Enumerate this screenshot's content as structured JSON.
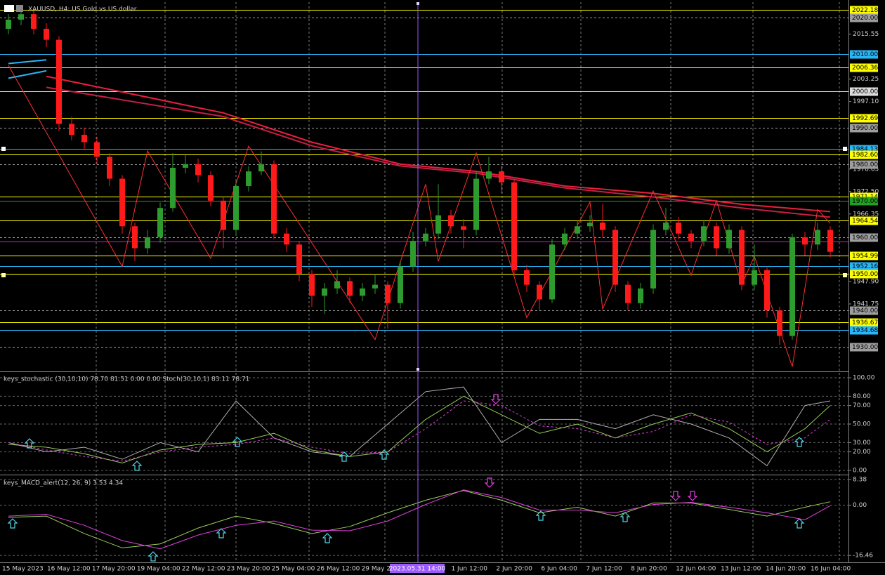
{
  "chart_data": [
    {
      "type": "candlestick",
      "title": "XAUUSD, H4: US Gold vs US dollar",
      "ylim": [
        1923.5,
        2024.3
      ],
      "yticks": [
        {
          "value": 2015.55,
          "label": "2015.55"
        },
        {
          "value": 2003.25,
          "label": "2003.25"
        },
        {
          "value": 1997.1,
          "label": "1997.10"
        },
        {
          "value": 1978.65,
          "label": "1978.65"
        },
        {
          "value": 1972.5,
          "label": "1972.50"
        },
        {
          "value": 1966.35,
          "label": "1966.35"
        },
        {
          "value": 1947.9,
          "label": "1947.90"
        },
        {
          "value": 1941.75,
          "label": "1941.75"
        }
      ],
      "up_color": "#2e9b2e",
      "down_color": "#ff1a1a",
      "open": [
        2017.0,
        2019.5,
        2021.0,
        2017.0,
        2014.0,
        1991.0,
        1988.0,
        1986.0,
        1982.0,
        1976.0,
        1963.0,
        1957.0,
        1960.0,
        1968.0,
        1979.0,
        1980.0,
        1977.0,
        1970.0,
        1962.0,
        1974.0,
        1978.0,
        1980.0,
        1961.0,
        1958.0,
        1950.0,
        1944.0,
        1946.0,
        1948.0,
        1944.0,
        1946.0,
        1947.0,
        1942.0,
        1952.0,
        1959.0,
        1961.0,
        1966.0,
        1963.0,
        1962.0,
        1976.0,
        1978.0,
        1975.0,
        1951.0,
        1947.0,
        1943.0,
        1958.0,
        1961.0,
        1963.0,
        1964.0,
        1962.0,
        1947.0,
        1942.0,
        1946.0,
        1962.0,
        1964.0,
        1961.0,
        1959.0,
        1963.0,
        1957.0,
        1962.0,
        1947.0,
        1951.0,
        1940.0,
        1933.0,
        1960.0,
        1958.0,
        1962.0
      ],
      "high": [
        2021.0,
        2022.2,
        2022.0,
        2018.5,
        2015.0,
        1993.0,
        1990.0,
        1987.5,
        1983.0,
        1977.0,
        1964.0,
        1962.0,
        1969.5,
        1983.0,
        1982.5,
        1981.5,
        1978.0,
        1971.0,
        1975.5,
        1979.5,
        1983.5,
        1981.0,
        1962.5,
        1959.0,
        1951.0,
        1947.5,
        1951.0,
        1949.0,
        1947.5,
        1950.0,
        1948.0,
        1953.5,
        1961.5,
        1962.5,
        1974.5,
        1967.5,
        1965.0,
        1978.0,
        1982.0,
        1979.5,
        1976.0,
        1952.5,
        1948.0,
        1959.5,
        1962.5,
        1964.5,
        1966.0,
        1969.0,
        1963.0,
        1948.0,
        1947.5,
        1963.5,
        1968.0,
        1965.5,
        1962.0,
        1964.5,
        1964.0,
        1963.5,
        1963.0,
        1958.0,
        1952.0,
        1941.0,
        1961.0,
        1961.5,
        1964.0,
        1963.0
      ],
      "low": [
        2015.5,
        2018.0,
        2015.5,
        2012.0,
        1989.0,
        1986.5,
        1984.0,
        1980.0,
        1974.0,
        1961.0,
        1953.5,
        1955.5,
        1958.5,
        1967.0,
        1977.5,
        1975.0,
        1968.5,
        1957.0,
        1960.5,
        1972.5,
        1977.0,
        1959.5,
        1956.0,
        1948.0,
        1941.0,
        1939.0,
        1944.5,
        1942.0,
        1942.5,
        1944.5,
        1935.0,
        1940.5,
        1950.5,
        1957.5,
        1959.5,
        1961.0,
        1957.0,
        1960.5,
        1974.5,
        1972.0,
        1949.5,
        1945.0,
        1940.0,
        1942.0,
        1956.5,
        1959.5,
        1961.5,
        1960.0,
        1945.0,
        1940.0,
        1940.5,
        1944.5,
        1960.5,
        1959.5,
        1957.0,
        1957.5,
        1955.0,
        1955.5,
        1945.5,
        1945.5,
        1938.0,
        1930.5,
        1932.0,
        1955.0,
        1956.5,
        1954.5
      ],
      "close": [
        2019.5,
        2021.0,
        2017.0,
        2014.0,
        1991.0,
        1988.0,
        1986.0,
        1982.0,
        1976.0,
        1963.0,
        1957.0,
        1960.0,
        1968.0,
        1979.0,
        1980.0,
        1977.0,
        1970.0,
        1962.0,
        1974.0,
        1978.0,
        1980.0,
        1961.0,
        1958.0,
        1950.0,
        1944.0,
        1946.0,
        1948.0,
        1944.0,
        1946.0,
        1947.0,
        1942.0,
        1952.0,
        1959.0,
        1961.0,
        1966.0,
        1963.0,
        1962.0,
        1976.0,
        1978.0,
        1975.0,
        1951.0,
        1947.0,
        1943.0,
        1958.0,
        1961.0,
        1963.0,
        1964.0,
        1962.0,
        1947.0,
        1942.0,
        1946.0,
        1962.0,
        1964.0,
        1961.0,
        1959.0,
        1963.0,
        1957.0,
        1962.0,
        1947.0,
        1951.0,
        1940.0,
        1933.0,
        1960.0,
        1958.0,
        1962.0,
        1956.0
      ],
      "overlays": [
        {
          "color": "#e8203c",
          "x": [
            3,
            10,
            17,
            24,
            31,
            37,
            44,
            51,
            58,
            65
          ],
          "values": [
            2004,
            1999,
            1994,
            1986,
            1980,
            1978,
            1974,
            1972,
            1969,
            1967
          ]
        },
        {
          "color": "#c81e46",
          "x": [
            3,
            10,
            17,
            24,
            31,
            37,
            44,
            51,
            58,
            65
          ],
          "values": [
            2001,
            1997,
            1993,
            1985,
            1979.5,
            1977.5,
            1973.5,
            1971,
            1968,
            1965.5
          ]
        },
        {
          "color": "#29b6f6",
          "x": [
            0,
            3
          ],
          "values": [
            2007.5,
            2008.5
          ]
        },
        {
          "color": "#29b6f6",
          "x": [
            0,
            3
          ],
          "values": [
            2003.5,
            2005.5
          ]
        },
        {
          "color": "#ff3030",
          "x": [
            0,
            9,
            11,
            16,
            19,
            29,
            33,
            34,
            37,
            41,
            46,
            47,
            51,
            54,
            56,
            58,
            59,
            62,
            64,
            65
          ],
          "values": [
            2007,
            1952,
            1983.6,
            1954.2,
            1984.9,
            1932,
            1974.5,
            1953.4,
            1983,
            1938,
            1969.6,
            1940.4,
            1972.6,
            1949.6,
            1970,
            1947,
            1954.8,
            1924.6,
            1967.6,
            1963.8
          ]
        }
      ],
      "levels": [
        {
          "value": 2022.18,
          "label": "2022.18",
          "color": "#ffff00",
          "style": "solid"
        },
        {
          "value": 2020.0,
          "label": "2020.00",
          "color": "#9e9e9e",
          "style": "dashed"
        },
        {
          "value": 2010.0,
          "label": "2010.00",
          "color": "#29b6f6",
          "style": "solid"
        },
        {
          "value": 2006.36,
          "label": "2006.36",
          "color": "#ffff00",
          "style": "solid"
        },
        {
          "value": 2000.0,
          "label": "2000.00",
          "color": "#dddddd",
          "style": "solid"
        },
        {
          "value": 1992.69,
          "label": "1992.69",
          "color": "#ffff00",
          "style": "solid"
        },
        {
          "value": 1990.0,
          "label": "1990.00",
          "color": "#9e9e9e",
          "style": "dashed"
        },
        {
          "value": 1984.13,
          "label": "1984.13",
          "color": "#29b6f6",
          "style": "solid"
        },
        {
          "value": 1982.6,
          "label": "1982.60",
          "color": "#ffff00",
          "style": "solid"
        },
        {
          "value": 1980.0,
          "label": "1980.00",
          "color": "#9e9e9e",
          "style": "dashed"
        },
        {
          "value": 1971.14,
          "label": "1971.14",
          "color": "#ffff00",
          "style": "solid"
        },
        {
          "value": 1970.0,
          "label": "1970.00",
          "color": "#22a022",
          "style": "solid"
        },
        {
          "value": 1964.54,
          "label": "1964.54",
          "color": "#ffff00",
          "style": "solid"
        },
        {
          "value": 1960.0,
          "label": "1960.00",
          "color": "#9e9e9e",
          "style": "dashed"
        },
        {
          "value": 1958.8,
          "color": "#ff00ff",
          "style": "solid"
        },
        {
          "value": 1954.99,
          "label": "1954.99",
          "color": "#ffff00",
          "style": "solid"
        },
        {
          "value": 1952.16,
          "label": "1952.16",
          "color": "#29b6f6",
          "style": "solid"
        },
        {
          "value": 1950.0,
          "label": "1950.00",
          "color": "#ffff00",
          "style": "solid"
        },
        {
          "value": 1940.0,
          "label": "1940.00",
          "color": "#9e9e9e",
          "style": "dashed"
        },
        {
          "value": 1936.67,
          "label": "1936.67",
          "color": "#ffff00",
          "style": "solid"
        },
        {
          "value": 1934.68,
          "label": "1934.68",
          "color": "#29b6f6",
          "style": "solid"
        },
        {
          "value": 1930.0,
          "label": "1930.00",
          "color": "#9e9e9e",
          "style": "dashed"
        }
      ],
      "xtick_labels": [
        "15 May 2023",
        "16 May 12:00",
        "17 May 20:00",
        "19 May 04:00",
        "22 May 12:00",
        "23 May 20:00",
        "25 May 04:00",
        "26 May 12:00",
        "29 May 2",
        "",
        "1 Jun 12:00",
        "2 Jun 20:00",
        "6 Jun 04:00",
        "7 Jun 12:00",
        "8 Jun 20:00",
        "12 Jun 04:00",
        "13 Jun 12:00",
        "14 Jun 20:00",
        "16 Jun 04:00"
      ],
      "crosshair_label": "2023.05.31 14:00"
    },
    {
      "type": "line",
      "title": "keys_stochastic (30,10,10) 78.70 81.51 0.00 0.00 Stoch(30,10,1) 83.11 78.71",
      "ylim": [
        -3.8,
        105.3
      ],
      "yticks": [
        {
          "value": 100,
          "label": "100.00"
        },
        {
          "value": 80,
          "label": "80.00"
        },
        {
          "value": 70,
          "label": "70.00"
        },
        {
          "value": 50,
          "label": "50.00"
        },
        {
          "value": 30,
          "label": "30.00"
        },
        {
          "value": 20,
          "label": "20.00"
        },
        {
          "value": 0,
          "label": "0.00"
        }
      ],
      "series": [
        {
          "color": "#b0b0b0",
          "dash": false,
          "x": [
            0,
            3,
            6,
            9,
            12,
            15,
            18,
            21,
            24,
            27,
            30,
            33,
            36,
            39,
            42,
            45,
            48,
            51,
            54,
            57,
            60,
            63,
            65
          ],
          "values": [
            30,
            20,
            25,
            12,
            30,
            20,
            75,
            35,
            20,
            15,
            50,
            85,
            90,
            30,
            55,
            55,
            45,
            60,
            50,
            35,
            5,
            70,
            75
          ]
        },
        {
          "color": "#9acd5a",
          "dash": false,
          "x": [
            0,
            3,
            6,
            9,
            12,
            15,
            18,
            21,
            24,
            27,
            30,
            33,
            36,
            39,
            42,
            45,
            48,
            51,
            54,
            57,
            60,
            63,
            65
          ],
          "values": [
            28,
            25,
            18,
            8,
            22,
            28,
            30,
            40,
            22,
            15,
            20,
            55,
            80,
            60,
            40,
            50,
            35,
            50,
            62,
            45,
            20,
            45,
            70
          ]
        },
        {
          "color": "#e040e0",
          "dash": true,
          "x": [
            0,
            3,
            6,
            9,
            12,
            15,
            18,
            21,
            24,
            27,
            30,
            33,
            36,
            39,
            42,
            45,
            48,
            51,
            54,
            57,
            60,
            63,
            65
          ],
          "values": [
            30,
            22,
            15,
            10,
            20,
            25,
            28,
            35,
            25,
            18,
            20,
            45,
            75,
            70,
            48,
            45,
            35,
            42,
            60,
            52,
            28,
            35,
            55
          ]
        }
      ]
    },
    {
      "type": "line",
      "title": "keys_MACD_alert(12, 26, 9) 3.53 4.34",
      "ylim": [
        -18.5,
        9.3
      ],
      "yticks": [
        {
          "value": 8.38,
          "label": "8.38"
        },
        {
          "value": 0,
          "label": "0.00"
        },
        {
          "value": -16.46,
          "label": "-16.46"
        }
      ],
      "series": [
        {
          "color": "#9acd5a",
          "dash": false,
          "x": [
            0,
            3,
            6,
            9,
            12,
            15,
            18,
            21,
            24,
            27,
            30,
            33,
            36,
            39,
            42,
            45,
            48,
            51,
            54,
            57,
            60,
            63,
            65
          ],
          "values": [
            -4,
            -3.6,
            -9.3,
            -14,
            -12.7,
            -7.5,
            -3.6,
            -6,
            -9.3,
            -7,
            -2.5,
            1.6,
            4.8,
            1.6,
            -2.5,
            -0.7,
            -3.6,
            0.7,
            0.7,
            -1.4,
            -3.6,
            -0.7,
            1.1
          ]
        },
        {
          "color": "#e040e0",
          "dash": false,
          "x": [
            0,
            3,
            6,
            9,
            12,
            15,
            18,
            21,
            24,
            27,
            30,
            33,
            36,
            39,
            42,
            45,
            48,
            51,
            54,
            57,
            60,
            63,
            65
          ],
          "values": [
            -3.6,
            -3,
            -6.6,
            -11.6,
            -14.3,
            -9.8,
            -6.6,
            -5.2,
            -8.2,
            -8.4,
            -5.2,
            0.2,
            5,
            2.5,
            -1.6,
            -1.6,
            -2.5,
            0.2,
            0.9,
            -0.7,
            -2.5,
            -4.8,
            -0.2
          ]
        }
      ]
    }
  ]
}
